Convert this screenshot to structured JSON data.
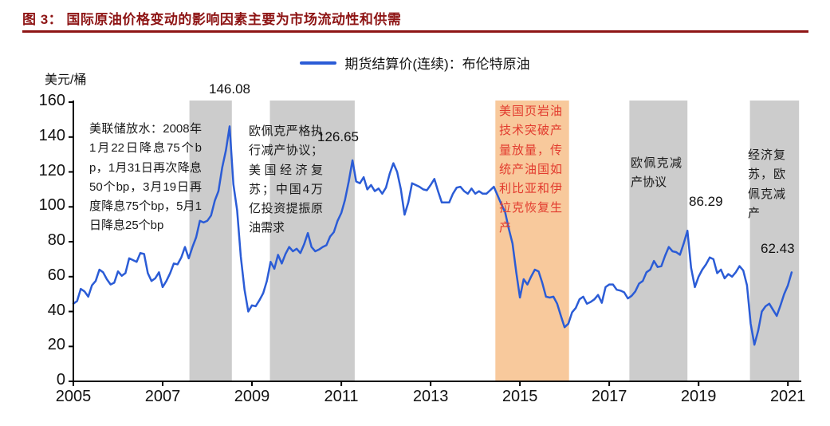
{
  "header": {
    "title": "图 3： 国际原油价格变动的影响因素主要为市场流动性和供需"
  },
  "legend": {
    "label": "期货结算价(连续)：布伦特原油"
  },
  "chart_data": {
    "type": "line",
    "series_name": "期货结算价(连续)：布伦特原油",
    "ylabel": "美元/桶",
    "xlabel": "",
    "xlim": [
      2005,
      2021.3
    ],
    "ylim": [
      0,
      160
    ],
    "yticks": [
      0,
      20,
      40,
      60,
      80,
      100,
      120,
      140,
      160
    ],
    "xtick_years": [
      2005,
      2007,
      2009,
      2011,
      2013,
      2015,
      2017,
      2019,
      2021
    ],
    "grid": false,
    "legend_position": "top-center",
    "line_color": "#2b5cd6",
    "x_start": 2005,
    "points_per_year": 12,
    "values": [
      44.5,
      46,
      53,
      51.5,
      48.5,
      55,
      57.5,
      64,
      62.5,
      58.5,
      55.5,
      56.5,
      63,
      60.5,
      62,
      70.5,
      69.5,
      68.5,
      73.5,
      73,
      62,
      57.5,
      59,
      62.5,
      54,
      57.5,
      62,
      67.5,
      67,
      71,
      77,
      70.5,
      77,
      82.5,
      92,
      91,
      92,
      95,
      103.5,
      109,
      122.5,
      132.5,
      146.08,
      113,
      98,
      71.5,
      52.5,
      40,
      43.5,
      43,
      46.5,
      50.5,
      57.5,
      68.5,
      64.5,
      72.5,
      67.5,
      73,
      77,
      74.5,
      76,
      73.5,
      78.5,
      85,
      77,
      74.5,
      75.5,
      77,
      78,
      83,
      85.5,
      92,
      96.5,
      104,
      114.5,
      126.65,
      114.5,
      113.5,
      117,
      110,
      112.5,
      109,
      110.5,
      107.5,
      111,
      119,
      125,
      120,
      110,
      95.5,
      102.5,
      113.5,
      112.5,
      111.5,
      110,
      109.5,
      112.5,
      116,
      109,
      102.5,
      102.5,
      102.5,
      107.5,
      111,
      111.5,
      109,
      107.5,
      110.5,
      107.5,
      109,
      107.5,
      107.5,
      109.5,
      111.5,
      106.5,
      101.5,
      97,
      87.5,
      79,
      62.5,
      48,
      58.5,
      55.5,
      60,
      64,
      63,
      56.5,
      48.5,
      48,
      48.5,
      44.5,
      37.5,
      31,
      33,
      39.5,
      42,
      47,
      48.5,
      44.5,
      45.5,
      47,
      49.5,
      45,
      54,
      55.5,
      55.5,
      52.5,
      52,
      51,
      47.5,
      49,
      51.5,
      56,
      57.5,
      62.5,
      64,
      69,
      65.5,
      66,
      72,
      77,
      74.5,
      74,
      72.5,
      79,
      86.29,
      65,
      54,
      60,
      64,
      67,
      71,
      70,
      62,
      64,
      59,
      61.5,
      60,
      62.5,
      66,
      63.5,
      55,
      33,
      21,
      29,
      40,
      43,
      44.5,
      41,
      37.5,
      43.5,
      50,
      55,
      62.43
    ],
    "bands": [
      {
        "from": 2007.6,
        "to": 2008.55,
        "color": "#cccccc"
      },
      {
        "from": 2009.4,
        "to": 2011.3,
        "color": "#cccccc"
      },
      {
        "from": 2014.45,
        "to": 2016.1,
        "color": "#f8c99c"
      },
      {
        "from": 2017.45,
        "to": 2018.75,
        "color": "#cccccc"
      },
      {
        "from": 2020.15,
        "to": 2021.25,
        "color": "#cccccc"
      }
    ],
    "point_labels": [
      {
        "x": 2008.5,
        "value": 146.08,
        "label": "146.08"
      },
      {
        "x": 2011.25,
        "value": 126.65,
        "label": "126.65"
      },
      {
        "x": 2018.75,
        "value": 86.29,
        "label": "86.29"
      },
      {
        "x": 2021.08,
        "value": 62.43,
        "label": "62.43"
      }
    ],
    "annotations": [
      {
        "id": "fed-easing",
        "text": "美联储放水：2008年1月22日降息75个bp，1月31日再次降息50个bp，3月19日再度降息75个bp，5月1日降息25个bp",
        "color": "#1a1a1a"
      },
      {
        "id": "opec-strict-cuts",
        "text": "欧佩克严格执行减产协议；美国经济复苏；中国4万亿投资提振原油需求",
        "color": "#1a1a1a"
      },
      {
        "id": "us-shale",
        "text": "美国页岩油技术突破产量放量，传统产油国如利比亚和伊拉克恢复生产",
        "color": "#e23b2e"
      },
      {
        "id": "opec-cut-agreement",
        "text": "欧佩克减产协议",
        "color": "#1a1a1a"
      },
      {
        "id": "economic-recovery",
        "text": "经济复苏，欧佩克减产",
        "color": "#1a1a1a"
      }
    ]
  }
}
